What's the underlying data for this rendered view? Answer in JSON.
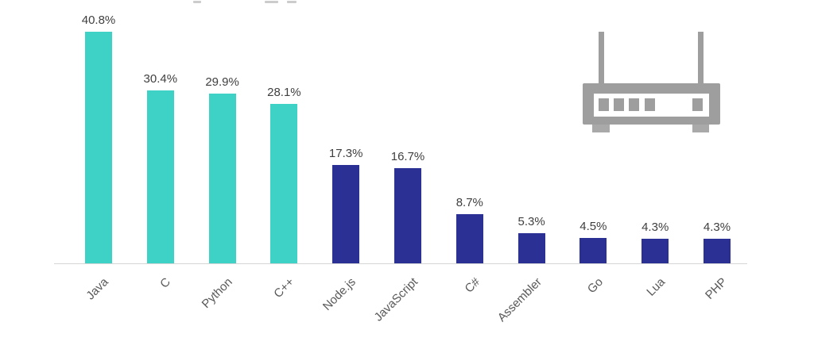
{
  "icon": {
    "name": "wireless-router",
    "color": "#9E9E9E",
    "foot_color": "#A9A9A9"
  },
  "chart_data": {
    "type": "bar",
    "title": "",
    "xlabel": "",
    "ylabel": "",
    "categories": [
      "Java",
      "C",
      "Python",
      "C++",
      "Node.js",
      "JavaScript",
      "C#",
      "Assembler",
      "Go",
      "Lua",
      "PHP"
    ],
    "values": [
      40.8,
      30.4,
      29.9,
      28.1,
      17.3,
      16.7,
      8.7,
      5.3,
      4.5,
      4.3,
      4.3
    ],
    "value_labels": [
      "40.8%",
      "30.4%",
      "29.9%",
      "28.1%",
      "17.3%",
      "16.7%",
      "8.7%",
      "5.3%",
      "4.5%",
      "4.3%",
      "4.3%"
    ],
    "bar_colors": [
      "#3DD2C5",
      "#3DD2C5",
      "#3DD2C5",
      "#3DD2C5",
      "#2B3194",
      "#2B3194",
      "#2B3194",
      "#2B3194",
      "#2B3194",
      "#2B3194",
      "#2B3194"
    ],
    "palette": {
      "teal": "#3DD2C5",
      "navy": "#2B3194"
    },
    "ylim": [
      0,
      45
    ],
    "grid": false,
    "legend": null,
    "y_axis_visible": false,
    "axis_line_color": "#D6D6D6",
    "value_label_color": "#3F3F3F",
    "category_label_color": "#595959",
    "category_label_rotation_deg": -45
  }
}
